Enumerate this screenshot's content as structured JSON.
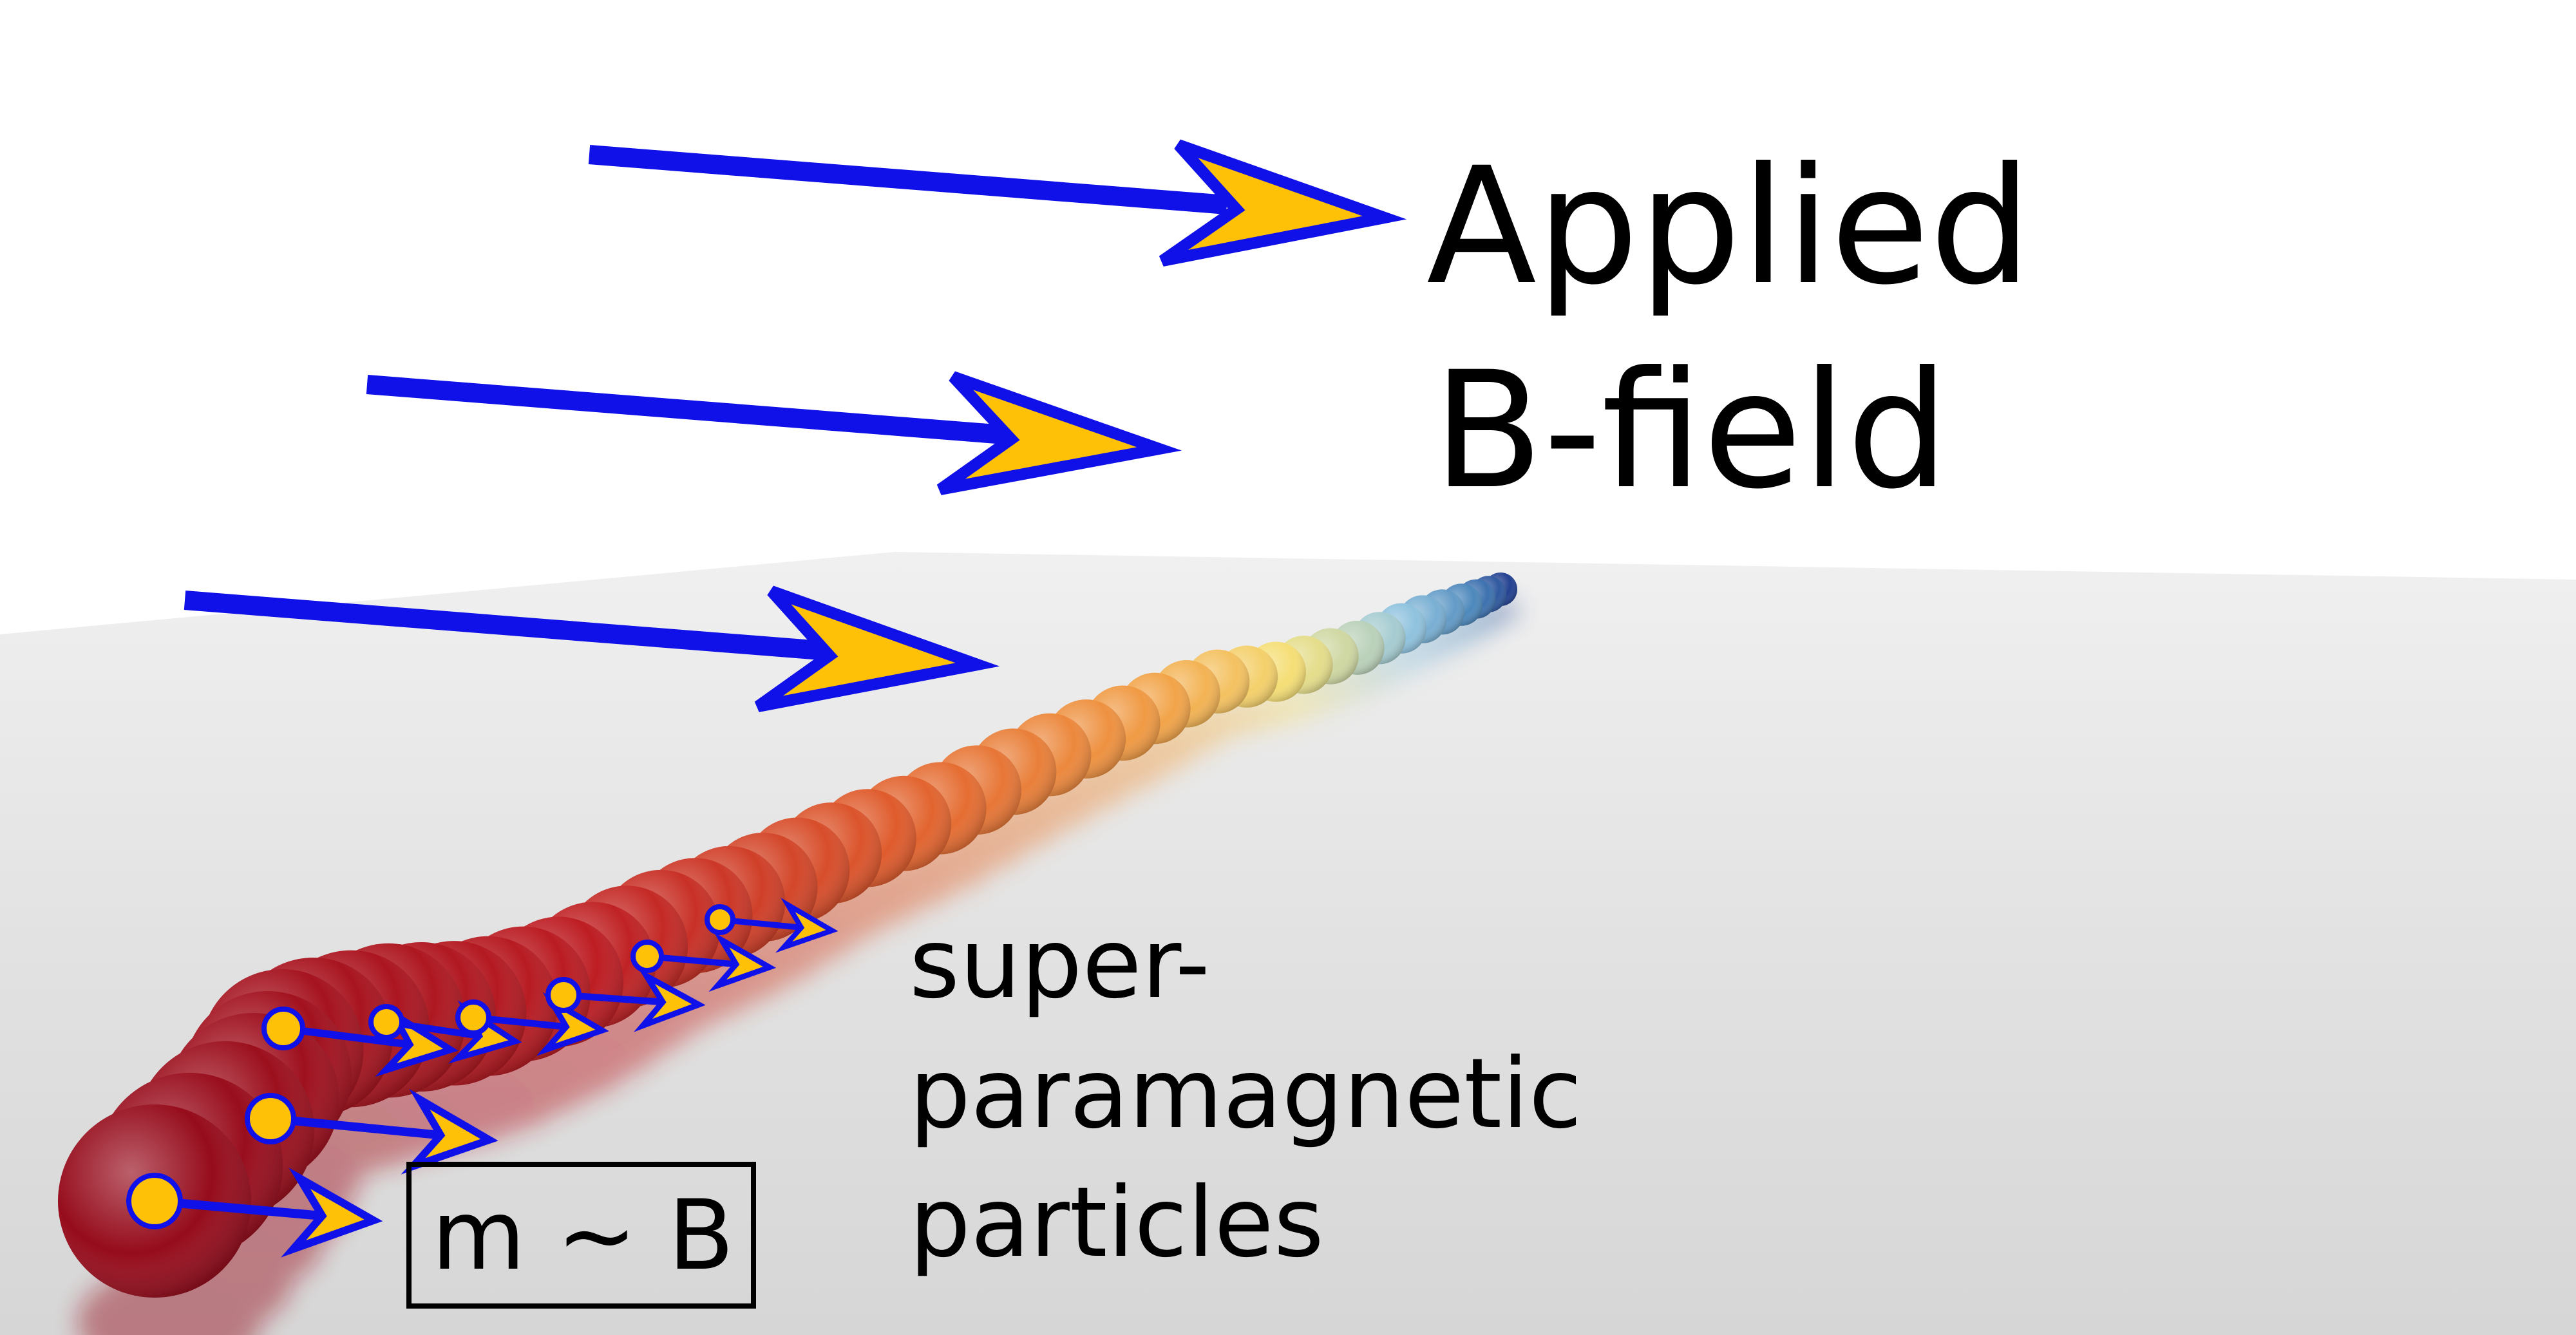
{
  "field_label": {
    "line1": "Applied",
    "line2": "B-field"
  },
  "particles_label": {
    "line1": "super-",
    "line2": "paramagnetic",
    "line3": "particles"
  },
  "relation_box": {
    "text": "m ~ B"
  },
  "colors": {
    "arrow_outline": "#1010e8",
    "arrow_fill": "#ffc107",
    "surface": "#dcdcdc",
    "chain_start": "#9a0c1c",
    "chain_end": "#1f3f8f"
  },
  "icons": [
    "field-arrow",
    "moment-arrow",
    "particle-sphere"
  ]
}
